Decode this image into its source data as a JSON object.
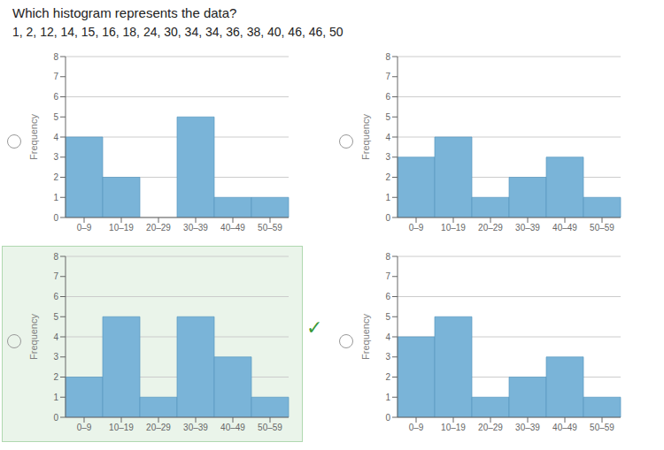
{
  "chart_data": [
    {
      "type": "bar",
      "title": "Which histogram represents the data?",
      "subtitle": "1, 2, 12, 14, 15, 16, 18, 24, 30, 34, 34, 36, 38, 40, 46, 46, 50",
      "categories": [
        "0–9",
        "10–19",
        "20–29",
        "30–39",
        "40–49",
        "50–59"
      ],
      "values": [
        4,
        2,
        0,
        5,
        1,
        1
      ],
      "color": "#7ab4d8",
      "ylabel": "Frequency",
      "ylim": [
        0,
        8
      ],
      "yticks": [
        0,
        1,
        2,
        3,
        4,
        5,
        6,
        7,
        8
      ],
      "grid": true
    },
    {
      "type": "bar",
      "categories": [
        "0–9",
        "10–19",
        "20–29",
        "30–39",
        "40–49",
        "50–59"
      ],
      "values": [
        3,
        4,
        1,
        2,
        3,
        1
      ],
      "color": "#7ab4d8",
      "ylabel": "Frequency",
      "ylim": [
        0,
        8
      ],
      "yticks": [
        0,
        1,
        2,
        3,
        4,
        5,
        6,
        7,
        8
      ],
      "grid": true
    },
    {
      "type": "bar",
      "categories": [
        "0–9",
        "10–19",
        "20–29",
        "30–39",
        "40–49",
        "50–59"
      ],
      "values": [
        2,
        5,
        1,
        5,
        3,
        1
      ],
      "color": "#7ab4d8",
      "ylabel": "Frequency",
      "ylim": [
        0,
        8
      ],
      "yticks": [
        0,
        1,
        2,
        3,
        4,
        5,
        6,
        7,
        8
      ],
      "grid": true,
      "annotation": "✓"
    },
    {
      "type": "bar",
      "categories": [
        "0–9",
        "10–19",
        "20–29",
        "30–39",
        "40–49",
        "50–59"
      ],
      "values": [
        4,
        5,
        1,
        2,
        3,
        1
      ],
      "color": "#7ab4d8",
      "ylabel": "Frequency",
      "ylim": [
        0,
        8
      ],
      "yticks": [
        0,
        1,
        2,
        3,
        4,
        5,
        6,
        7,
        8
      ],
      "grid": true
    }
  ]
}
